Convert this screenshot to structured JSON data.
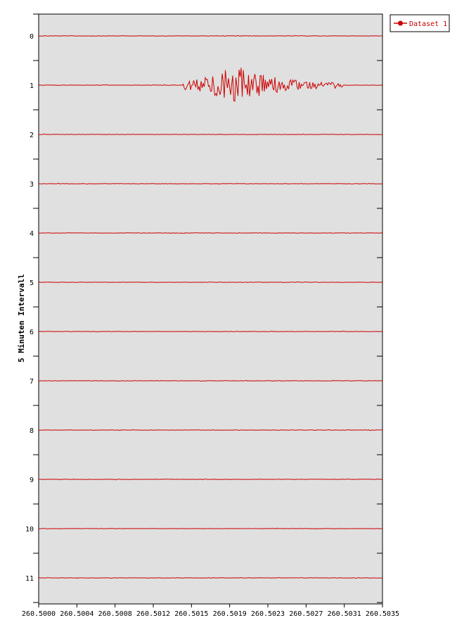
{
  "chart_data": {
    "type": "line",
    "title": "",
    "xlabel": "",
    "ylabel": "5 Minuten Intervall",
    "xlim": [
      260.5,
      260.5035
    ],
    "ylim": [
      0,
      11
    ],
    "y_inverted": true,
    "x_ticks": [
      "260.5000",
      "260.5004",
      "260.5008",
      "260.5012",
      "260.5015",
      "260.5019",
      "260.5023",
      "260.5027",
      "260.5031",
      "260.5035"
    ],
    "y_ticks": [
      "0",
      "1",
      "2",
      "3",
      "4",
      "5",
      "6",
      "7",
      "8",
      "9",
      "10",
      "11"
    ],
    "grid": false,
    "legend_position": "top-right",
    "series": [
      {
        "name": "Dataset 1",
        "traces": [
          {
            "interval": 0,
            "baseline": 0,
            "event": false
          },
          {
            "interval": 1,
            "baseline": 1,
            "event": true,
            "event_start": 260.50147,
            "event_peak": 260.50203,
            "event_end": 260.5031
          },
          {
            "interval": 2,
            "baseline": 2,
            "event": false
          },
          {
            "interval": 3,
            "baseline": 3,
            "event": false
          },
          {
            "interval": 4,
            "baseline": 4,
            "event": false
          },
          {
            "interval": 5,
            "baseline": 5,
            "event": false
          },
          {
            "interval": 6,
            "baseline": 6,
            "event": false
          },
          {
            "interval": 7,
            "baseline": 7,
            "event": false
          },
          {
            "interval": 8,
            "baseline": 8,
            "event": false
          },
          {
            "interval": 9,
            "baseline": 9,
            "event": false
          },
          {
            "interval": 10,
            "baseline": 10,
            "event": false
          },
          {
            "interval": 11,
            "baseline": 11,
            "event": false
          }
        ]
      }
    ]
  },
  "colors": {
    "plot_background": "#e0e0e0",
    "trace": "#cc0000",
    "axis": "#000000"
  }
}
